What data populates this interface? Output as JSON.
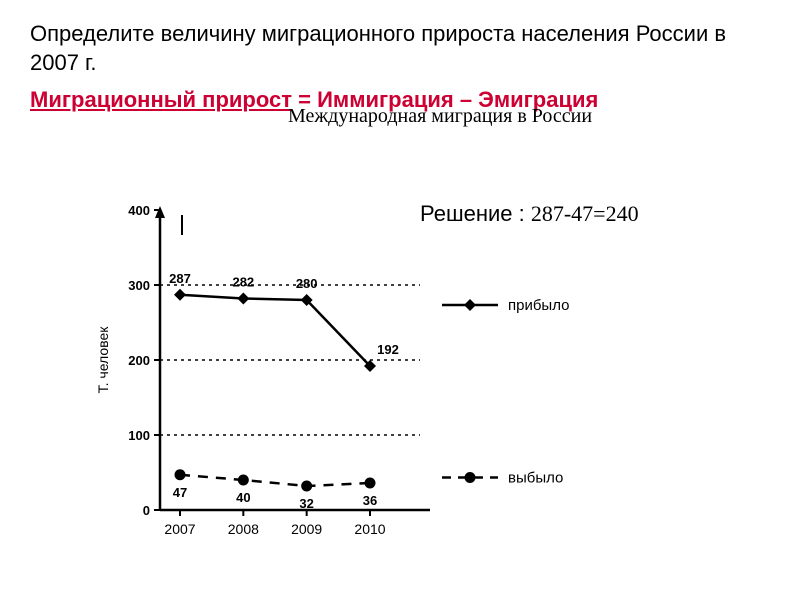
{
  "title": "Определите величину миграционного прироста населения России в 2007 г.",
  "formula": {
    "term": "Миграционный прирост",
    "rest": " = Иммиграция – Эмиграция"
  },
  "chart_title": "Международная миграция в России",
  "solution": {
    "label": "Решение : ",
    "calc": "287-47=240"
  },
  "chart": {
    "type": "line",
    "ylabel": "Т. человек",
    "ylim": [
      0,
      400
    ],
    "ytick_step": 100,
    "xticks": [
      "2007",
      "2008",
      "2009",
      "2010"
    ],
    "series": [
      {
        "name": "прибыло",
        "values": [
          287,
          282,
          280,
          192
        ],
        "point_labels": [
          "287",
          "282",
          "280",
          "192"
        ],
        "style": "solid",
        "marker": "diamond",
        "color": "#000000"
      },
      {
        "name": "выбыло",
        "values": [
          47,
          40,
          32,
          36
        ],
        "point_labels": [
          "47",
          "40",
          "32",
          "36"
        ],
        "style": "dashed",
        "marker": "circle",
        "color": "#000000"
      }
    ],
    "axis_color": "#000000",
    "grid_color": "#000000",
    "background": "#ffffff",
    "label_fontsize": 14,
    "tick_fontsize": 13
  }
}
